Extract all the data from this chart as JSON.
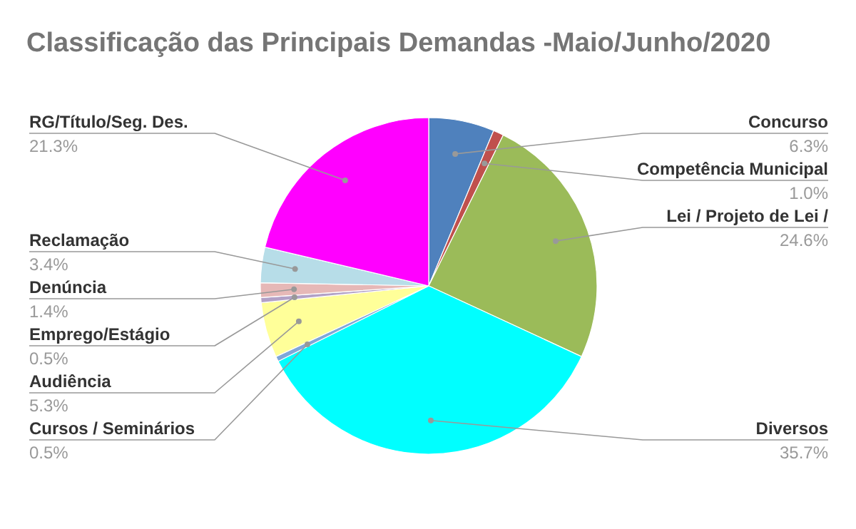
{
  "chart_data": {
    "type": "pie",
    "title": "Classificação das Principais Demandas -Maio/Junho/2020",
    "categories": [
      "Concurso",
      "Competência Municipal",
      "Lei / Projeto de Lei /",
      "Diversos",
      "Cursos / Seminários",
      "Audiência",
      "Emprego/Estágio",
      "Denúncia",
      "Reclamação",
      "RG/Título/Seg. Des."
    ],
    "values": [
      6.3,
      1.0,
      24.6,
      35.7,
      0.5,
      5.3,
      0.5,
      1.4,
      3.4,
      21.3
    ],
    "value_labels": [
      "6.3%",
      "1.0%",
      "24.6%",
      "35.7%",
      "0.5%",
      "5.3%",
      "0.5%",
      "1.4%",
      "3.4%",
      "21.3%"
    ],
    "colors": [
      "#4f81bd",
      "#c0504d",
      "#9bbb59",
      "#00ffff",
      "#7fa7d9",
      "#ffff99",
      "#b2a1c7",
      "#e6b8b7",
      "#b7dde8",
      "#ff00ff"
    ]
  }
}
